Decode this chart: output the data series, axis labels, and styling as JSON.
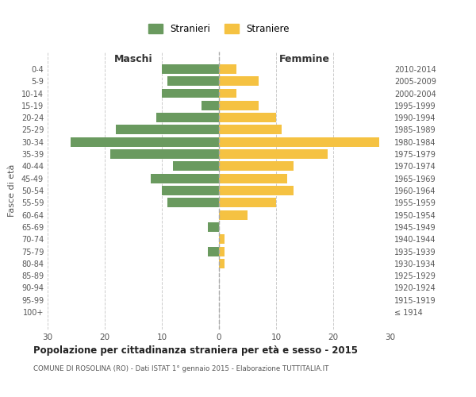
{
  "age_groups": [
    "0-4",
    "5-9",
    "10-14",
    "15-19",
    "20-24",
    "25-29",
    "30-34",
    "35-39",
    "40-44",
    "45-49",
    "50-54",
    "55-59",
    "60-64",
    "65-69",
    "70-74",
    "75-79",
    "80-84",
    "85-89",
    "90-94",
    "95-99",
    "100+"
  ],
  "birth_years": [
    "2010-2014",
    "2005-2009",
    "2000-2004",
    "1995-1999",
    "1990-1994",
    "1985-1989",
    "1980-1984",
    "1975-1979",
    "1970-1974",
    "1965-1969",
    "1960-1964",
    "1955-1959",
    "1950-1954",
    "1945-1949",
    "1940-1944",
    "1935-1939",
    "1930-1934",
    "1925-1929",
    "1920-1924",
    "1915-1919",
    "≤ 1914"
  ],
  "maschi": [
    10,
    9,
    10,
    3,
    11,
    18,
    26,
    19,
    8,
    12,
    10,
    9,
    0,
    2,
    0,
    2,
    0,
    0,
    0,
    0,
    0
  ],
  "femmine": [
    3,
    7,
    3,
    7,
    10,
    11,
    28,
    19,
    13,
    12,
    13,
    10,
    5,
    0,
    1,
    1,
    1,
    0,
    0,
    0,
    0
  ],
  "maschi_color": "#6a9a5f",
  "femmine_color": "#f5c242",
  "title": "Popolazione per cittadinanza straniera per età e sesso - 2015",
  "subtitle": "COMUNE DI ROSOLINA (RO) - Dati ISTAT 1° gennaio 2015 - Elaborazione TUTTITALIA.IT",
  "ylabel_left": "Fasce di età",
  "xlabel_maschi": "Maschi",
  "xlabel_femmine": "Femmine",
  "legend_maschi": "Stranieri",
  "legend_femmine": "Straniere",
  "xlim": 30,
  "background_color": "#ffffff",
  "grid_color": "#cccccc"
}
